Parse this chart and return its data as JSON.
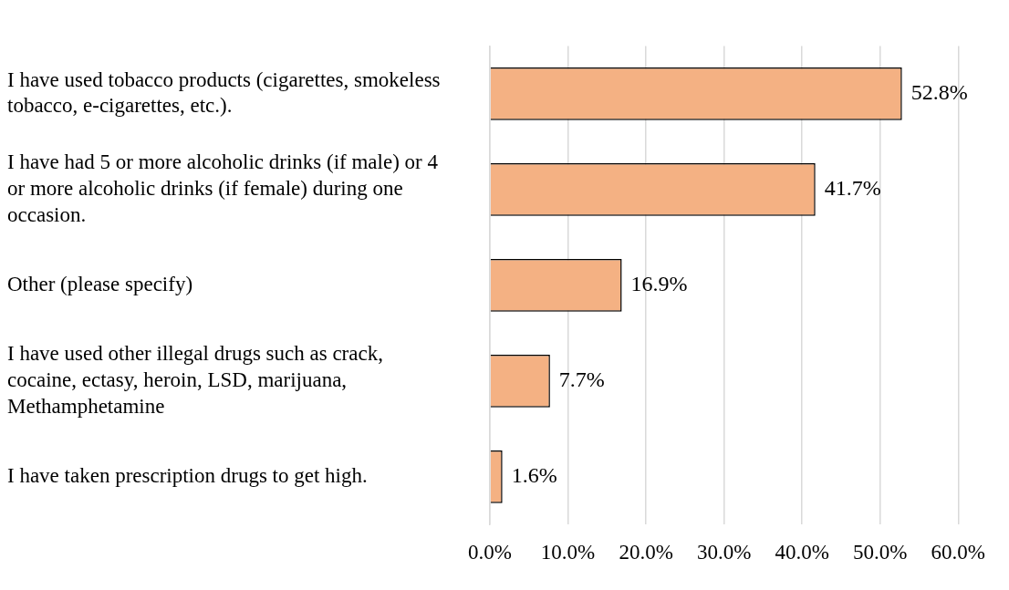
{
  "chart_data": {
    "type": "bar",
    "orientation": "horizontal",
    "categories": [
      "I have used tobacco products (cigarettes, smokeless tobacco, e-cigarettes, etc.).",
      "I have had 5 or more alcoholic drinks (if male) or 4 or more alcoholic drinks (if female) during one occasion.",
      "Other (please specify)",
      "I have used other illegal drugs such as crack, cocaine, ectasy, heroin, LSD, marijuana, Methamphetamine",
      "I have taken prescription drugs to get high."
    ],
    "values": [
      52.8,
      41.7,
      16.9,
      7.7,
      1.6
    ],
    "value_labels": [
      "52.8%",
      "41.7%",
      "16.9%",
      "7.7%",
      "1.6%"
    ],
    "color": "#f4b183",
    "xlim": [
      0,
      60
    ],
    "xticks": [
      {
        "value": 0,
        "label": "0.0%"
      },
      {
        "value": 10,
        "label": "10.0%"
      },
      {
        "value": 20,
        "label": "20.0%"
      },
      {
        "value": 30,
        "label": "30.0%"
      },
      {
        "value": 40,
        "label": "40.0%"
      },
      {
        "value": 50,
        "label": "50.0%"
      },
      {
        "value": 60,
        "label": "60.0%"
      }
    ],
    "grid": "x",
    "legend": false
  }
}
